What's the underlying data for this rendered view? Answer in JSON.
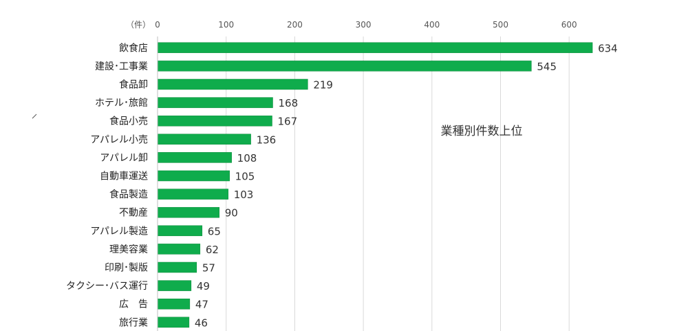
{
  "chart_data": {
    "type": "bar",
    "orientation": "horizontal",
    "title": "業種別件数上位",
    "unit_label": "（件）",
    "categories": [
      "飲食店",
      "建設･工事業",
      "食品卸",
      "ホテル･旅館",
      "食品小売",
      "アパレル小売",
      "アパレル卸",
      "自動車運送",
      "食品製造",
      "不動産",
      "アパレル製造",
      "理美容業",
      "印刷･製版",
      "タクシー･バス運行",
      "広　告",
      "旅行業"
    ],
    "values": [
      634,
      545,
      219,
      168,
      167,
      136,
      108,
      105,
      103,
      90,
      65,
      62,
      57,
      49,
      47,
      46
    ],
    "value_labels": [
      "634",
      "545",
      "219",
      "168",
      "167",
      "136",
      "108",
      "105",
      "103",
      "90",
      "65",
      "62",
      "57",
      "49",
      "47",
      "46"
    ],
    "xlim": [
      0,
      640
    ],
    "x_ticks": [
      0,
      100,
      200,
      300,
      400,
      500,
      600
    ],
    "x_tick_labels": [
      "0",
      "100",
      "200",
      "300",
      "400",
      "500",
      "600"
    ],
    "grid": true,
    "bar_color": "#0fac4c",
    "axis_position": "top"
  }
}
